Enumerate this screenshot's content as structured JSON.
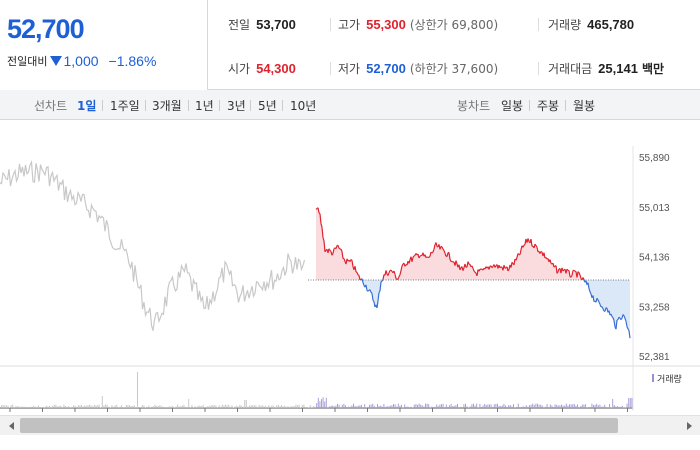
{
  "quote": {
    "price": "52,700",
    "change_label": "전일대비",
    "change": "1,000",
    "change_rate": "−1.86%",
    "items": {
      "prev_close": {
        "label": "전일",
        "value": "53,700"
      },
      "high": {
        "label": "고가",
        "value": "55,300",
        "limit": "(상한가 69,800)"
      },
      "volume": {
        "label": "거래량",
        "value": "465,780"
      },
      "open": {
        "label": "시가",
        "value": "54,300"
      },
      "low": {
        "label": "저가",
        "value": "52,700",
        "limit": "(하한가 37,600)"
      },
      "amount": {
        "label": "거래대금",
        "value": "25,141",
        "unit": "백만"
      }
    }
  },
  "toolbar": {
    "line_chart_label": "선차트",
    "periods": [
      "1일",
      "1주일",
      "3개월",
      "1년",
      "3년",
      "5년",
      "10년"
    ],
    "active_period": "1일",
    "candle_chart_label": "봉차트",
    "candle_periods": [
      "일봉",
      "주봉",
      "월봉"
    ]
  },
  "chart_data": {
    "type": "line",
    "y_ticks": [
      "55,890",
      "55,013",
      "54,136",
      "53,258",
      "52,381"
    ],
    "ylim": [
      52381,
      55890
    ],
    "reference_price": 53700,
    "volume_legend": "거래량",
    "colors": {
      "up": "#e0222e",
      "down": "#3a6fd2",
      "history": "#c8c8c8",
      "reference_line": "#555555"
    }
  }
}
